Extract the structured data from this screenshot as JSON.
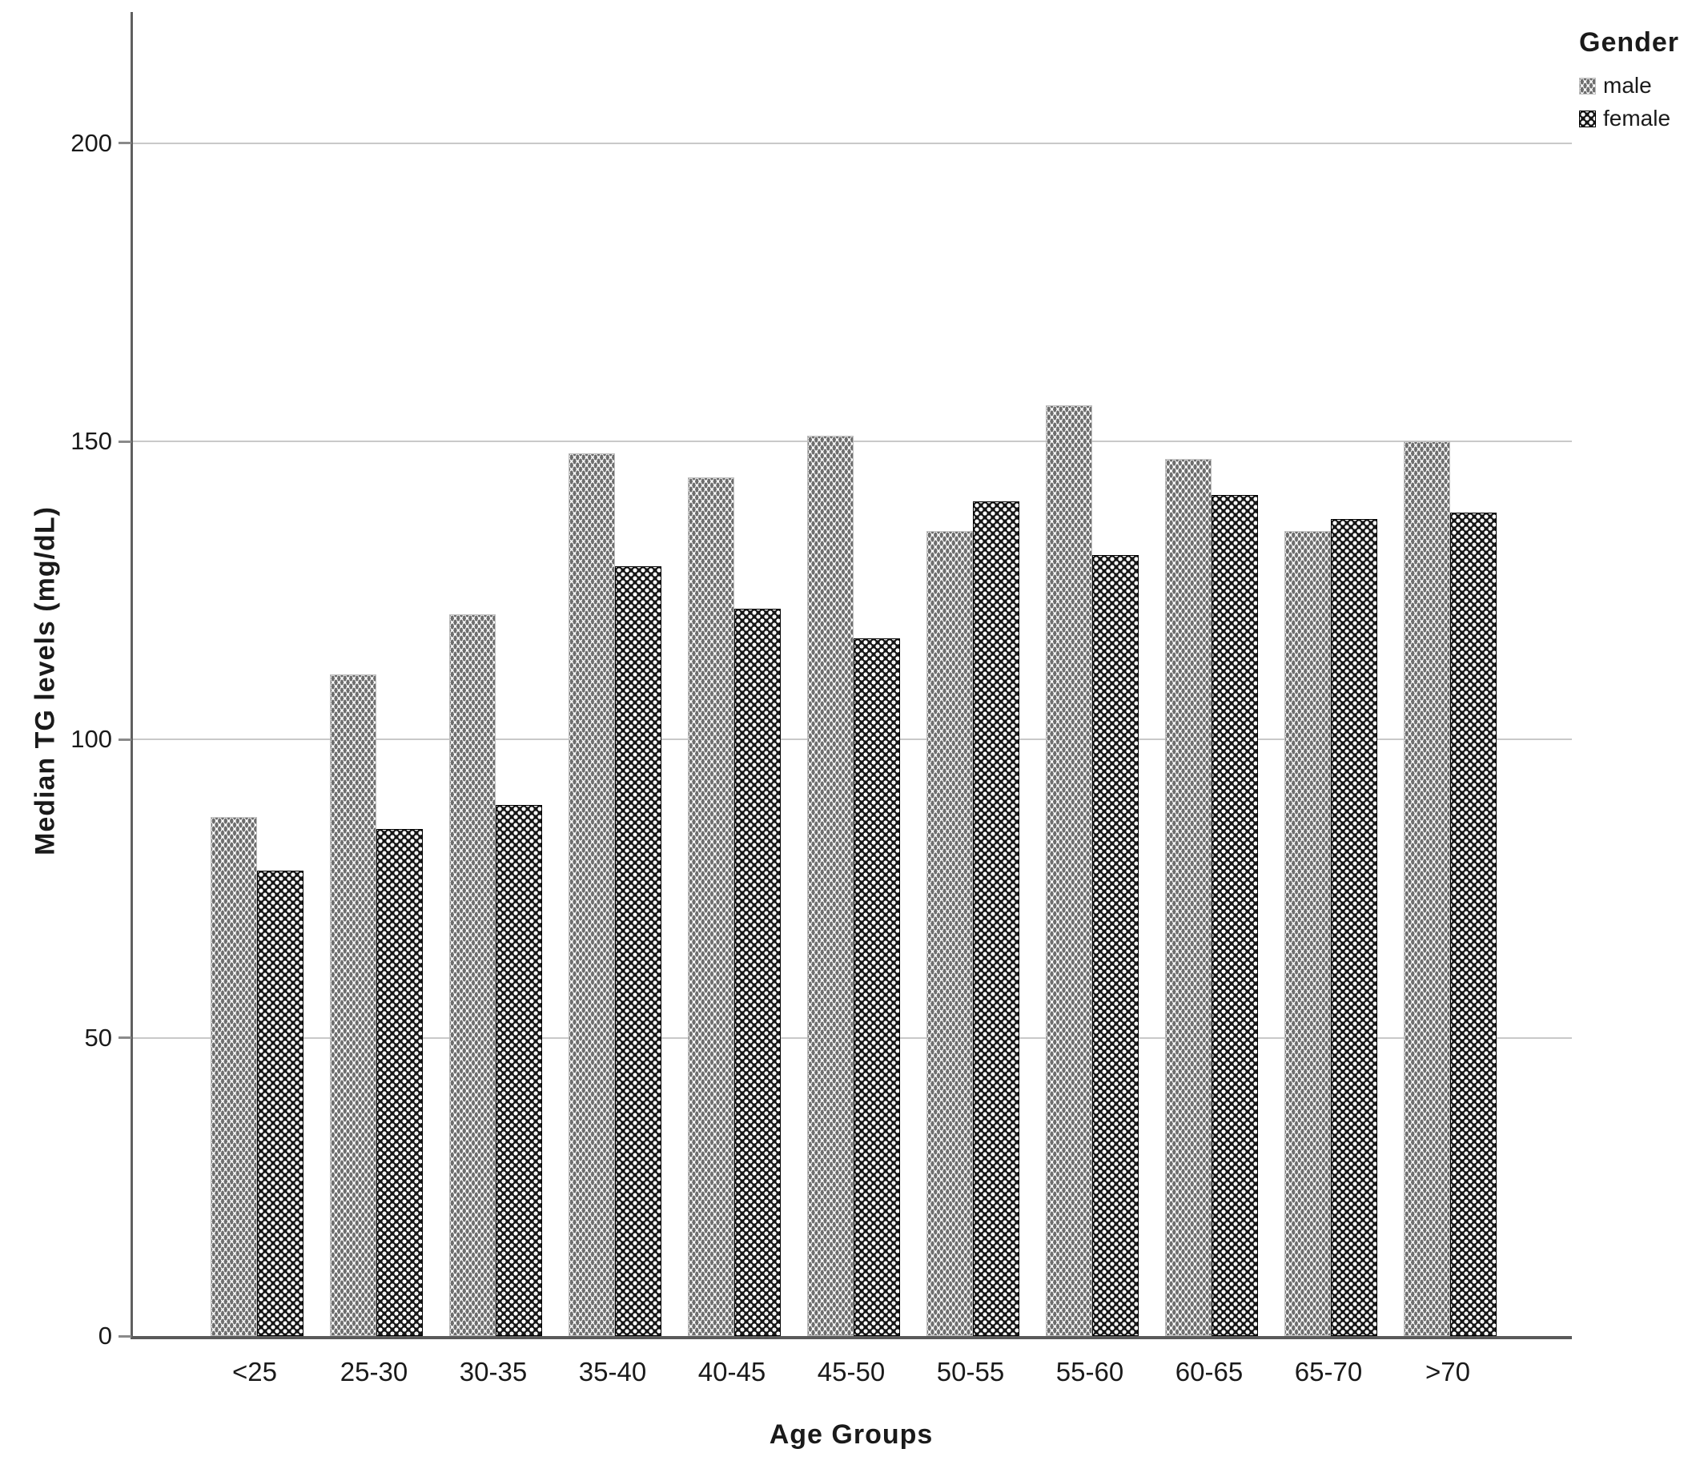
{
  "chart_data": {
    "type": "bar",
    "title": "",
    "categories": [
      "<25",
      "25-30",
      "30-35",
      "35-40",
      "40-45",
      "45-50",
      "50-55",
      "55-60",
      "60-65",
      "65-70",
      ">70"
    ],
    "series": [
      {
        "name": "male",
        "pattern": "dotted-light",
        "values": [
          87,
          111,
          121,
          148,
          144,
          151,
          135,
          156,
          147,
          135,
          150
        ]
      },
      {
        "name": "female",
        "pattern": "crosshatch-dark",
        "values": [
          78,
          85,
          89,
          129,
          122,
          117,
          140,
          131,
          141,
          137,
          138
        ]
      }
    ],
    "xlabel": "Age Groups",
    "ylabel": "Median TG levels (mg/dL)",
    "ylim": [
      0,
      222
    ],
    "yticks": [
      0,
      50,
      100,
      150,
      200
    ],
    "grid": "horizontal-gridlines-at-yticks",
    "legend_title": "Gender",
    "legend_position": "top-right"
  },
  "colors": {
    "background": "#ffffff",
    "male_pattern_dot": "#6e6e6e",
    "female_pattern_base": "#161616",
    "gridline": "#c9c9c9",
    "axis_line": "#5a5a5a",
    "text": "#1a1a1a"
  }
}
